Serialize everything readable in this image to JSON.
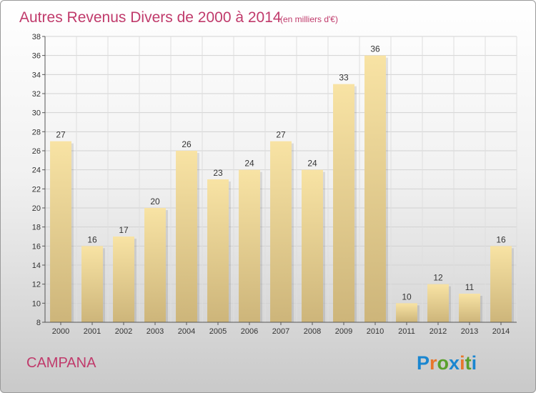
{
  "chart_data": {
    "type": "bar",
    "title": "Autres Revenus Divers de 2000 à 2014",
    "subtitle": "(en milliers d'€)",
    "categories": [
      "2000",
      "2001",
      "2002",
      "2003",
      "2004",
      "2005",
      "2006",
      "2007",
      "2008",
      "2009",
      "2010",
      "2011",
      "2012",
      "2013",
      "2014"
    ],
    "values": [
      27,
      16,
      17,
      20,
      26,
      23,
      24,
      27,
      24,
      33,
      36,
      10,
      12,
      11,
      16
    ],
    "ylim": [
      8,
      38
    ],
    "yticks": [
      8,
      10,
      12,
      14,
      16,
      18,
      20,
      22,
      24,
      26,
      28,
      30,
      32,
      34,
      36,
      38
    ],
    "grid": true,
    "xlabel": "",
    "ylabel": ""
  },
  "commune": "CAMPANA",
  "logo": {
    "text": "Proxiti",
    "letter_colors": [
      "#1a86d0",
      "#e8762b",
      "#5aa02c",
      "#1a86d0",
      "#e8762b",
      "#5aa02c",
      "#1a86d0"
    ]
  },
  "colors": {
    "title": "#c03a6b",
    "bar_light": "#f8e3a4",
    "bar_dark": "#cdb57a"
  }
}
